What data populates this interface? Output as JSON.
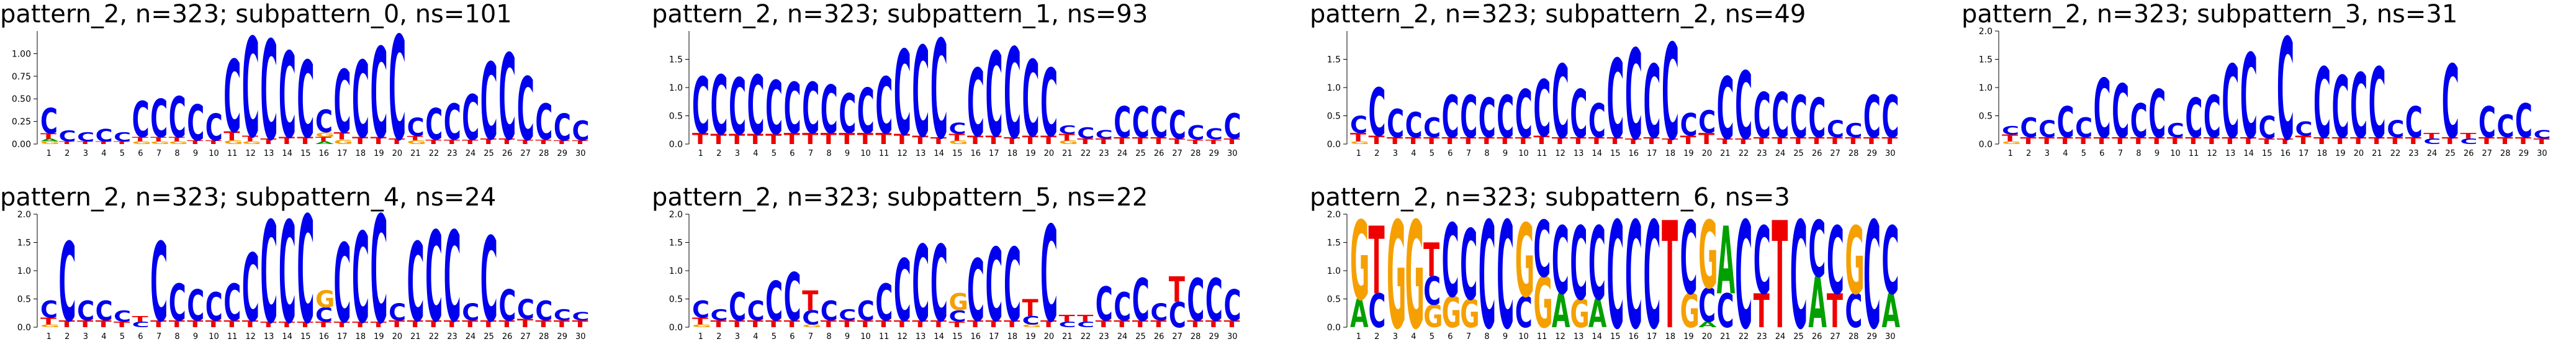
{
  "colors": {
    "C": "#0000ee",
    "G": "#f5a000",
    "T": "#ee0000",
    "A": "#00a000",
    "axis": "#000000"
  },
  "chart_data": [
    {
      "type": "sequence-logo",
      "title": "pattern_2, n=323; subpattern_0, ns=101",
      "ylim": [
        0,
        1.25
      ],
      "yticks": [
        "0.00",
        "0.25",
        "0.50",
        "0.75",
        "1.00"
      ],
      "xticks": [
        "1",
        "2",
        "3",
        "4",
        "5",
        "6",
        "7",
        "8",
        "9",
        "10",
        "11",
        "12",
        "13",
        "14",
        "15",
        "16",
        "17",
        "18",
        "19",
        "20",
        "21",
        "22",
        "23",
        "24",
        "25",
        "26",
        "27",
        "28",
        "29",
        "30"
      ],
      "columns": [
        {
          "C": 0.28,
          "T": 0.06,
          "G": 0.03,
          "A": 0.03
        },
        {
          "C": 0.12,
          "T": 0.03
        },
        {
          "C": 0.1,
          "T": 0.03
        },
        {
          "C": 0.14,
          "T": 0.03
        },
        {
          "C": 0.1,
          "T": 0.03
        },
        {
          "C": 0.4,
          "T": 0.05,
          "G": 0.03
        },
        {
          "C": 0.42,
          "T": 0.05,
          "G": 0.03
        },
        {
          "C": 0.45,
          "T": 0.05,
          "G": 0.03
        },
        {
          "C": 0.4,
          "T": 0.04
        },
        {
          "C": 0.3,
          "T": 0.04
        },
        {
          "C": 0.8,
          "T": 0.1,
          "G": 0.04
        },
        {
          "C": 1.1,
          "T": 0.06,
          "G": 0.03
        },
        {
          "C": 1.1,
          "T": 0.06
        },
        {
          "C": 0.95,
          "T": 0.08
        },
        {
          "C": 0.85,
          "T": 0.08
        },
        {
          "C": 0.25,
          "T": 0.05,
          "G": 0.05,
          "A": 0.03
        },
        {
          "C": 0.7,
          "T": 0.08,
          "G": 0.05
        },
        {
          "C": 0.85,
          "T": 0.08
        },
        {
          "C": 1.0,
          "T": 0.08
        },
        {
          "C": 1.15,
          "T": 0.06
        },
        {
          "C": 0.2,
          "T": 0.05,
          "G": 0.04
        },
        {
          "C": 0.35,
          "T": 0.05
        },
        {
          "C": 0.4,
          "T": 0.05
        },
        {
          "C": 0.5,
          "T": 0.05
        },
        {
          "C": 0.85,
          "T": 0.06
        },
        {
          "C": 0.95,
          "T": 0.06
        },
        {
          "C": 0.7,
          "T": 0.05
        },
        {
          "C": 0.4,
          "T": 0.05
        },
        {
          "C": 0.3,
          "T": 0.04
        },
        {
          "C": 0.22,
          "T": 0.04
        }
      ]
    },
    {
      "type": "sequence-logo",
      "title": "pattern_2, n=323; subpattern_1, ns=93",
      "ylim": [
        0,
        2.0
      ],
      "yticks": [
        "0.0",
        "0.5",
        "1.0",
        "1.5"
      ],
      "xticks": [
        "1",
        "2",
        "3",
        "4",
        "5",
        "6",
        "7",
        "8",
        "9",
        "10",
        "11",
        "12",
        "13",
        "14",
        "15",
        "16",
        "17",
        "18",
        "19",
        "20",
        "21",
        "22",
        "23",
        "24",
        "25",
        "26",
        "27",
        "28",
        "29",
        "30"
      ],
      "columns": [
        {
          "C": 1.0,
          "T": 0.2
        },
        {
          "C": 1.05,
          "T": 0.18
        },
        {
          "C": 1.0,
          "T": 0.18
        },
        {
          "C": 1.05,
          "T": 0.18
        },
        {
          "C": 0.95,
          "T": 0.18
        },
        {
          "C": 0.9,
          "T": 0.2
        },
        {
          "C": 0.9,
          "T": 0.2
        },
        {
          "C": 0.85,
          "T": 0.2
        },
        {
          "C": 0.7,
          "T": 0.2
        },
        {
          "C": 0.8,
          "T": 0.2
        },
        {
          "C": 1.0,
          "T": 0.2
        },
        {
          "C": 1.5,
          "T": 0.18
        },
        {
          "C": 1.6,
          "T": 0.15
        },
        {
          "C": 1.75,
          "T": 0.12
        },
        {
          "C": 0.2,
          "T": 0.12,
          "G": 0.06
        },
        {
          "C": 1.2,
          "T": 0.15
        },
        {
          "C": 1.5,
          "T": 0.15
        },
        {
          "C": 1.6,
          "T": 0.12
        },
        {
          "C": 1.35,
          "T": 0.15
        },
        {
          "C": 1.2,
          "T": 0.15
        },
        {
          "C": 0.15,
          "T": 0.12,
          "G": 0.06
        },
        {
          "C": 0.2,
          "T": 0.1
        },
        {
          "C": 0.15,
          "T": 0.1
        },
        {
          "C": 0.55,
          "T": 0.12
        },
        {
          "C": 0.55,
          "T": 0.12
        },
        {
          "C": 0.55,
          "T": 0.12
        },
        {
          "C": 0.5,
          "T": 0.1
        },
        {
          "C": 0.25,
          "T": 0.08
        },
        {
          "C": 0.2,
          "T": 0.08
        },
        {
          "C": 0.45,
          "T": 0.1
        }
      ]
    },
    {
      "type": "sequence-logo",
      "title": "pattern_2, n=323; subpattern_2, ns=49",
      "ylim": [
        0,
        2.0
      ],
      "yticks": [
        "0.0",
        "0.5",
        "1.0",
        "1.5"
      ],
      "xticks": [
        "1",
        "2",
        "3",
        "4",
        "5",
        "6",
        "7",
        "8",
        "9",
        "10",
        "11",
        "12",
        "13",
        "14",
        "15",
        "16",
        "17",
        "18",
        "19",
        "20",
        "21",
        "22",
        "23",
        "24",
        "25",
        "26",
        "27",
        "28",
        "29",
        "30"
      ],
      "columns": [
        {
          "C": 0.3,
          "T": 0.15,
          "G": 0.05
        },
        {
          "C": 0.85,
          "T": 0.15
        },
        {
          "C": 0.5,
          "T": 0.12
        },
        {
          "C": 0.45,
          "T": 0.12
        },
        {
          "C": 0.35,
          "T": 0.12
        },
        {
          "C": 0.75,
          "T": 0.12
        },
        {
          "C": 0.75,
          "T": 0.12
        },
        {
          "C": 0.7,
          "T": 0.12
        },
        {
          "C": 0.75,
          "T": 0.12
        },
        {
          "C": 0.85,
          "T": 0.12
        },
        {
          "C": 1.0,
          "T": 0.15
        },
        {
          "C": 1.3,
          "T": 0.12
        },
        {
          "C": 0.85,
          "T": 0.12
        },
        {
          "C": 0.6,
          "T": 0.12
        },
        {
          "C": 1.4,
          "T": 0.12
        },
        {
          "C": 1.6,
          "T": 0.1
        },
        {
          "C": 1.3,
          "T": 0.12
        },
        {
          "C": 1.7,
          "T": 0.1
        },
        {
          "C": 0.4,
          "T": 0.15
        },
        {
          "C": 0.4,
          "T": 0.2
        },
        {
          "C": 1.1,
          "T": 0.1
        },
        {
          "C": 1.2,
          "T": 0.1
        },
        {
          "C": 0.8,
          "T": 0.12
        },
        {
          "C": 0.8,
          "T": 0.12
        },
        {
          "C": 0.75,
          "T": 0.12
        },
        {
          "C": 0.7,
          "T": 0.12
        },
        {
          "C": 0.3,
          "T": 0.12
        },
        {
          "C": 0.25,
          "T": 0.12
        },
        {
          "C": 0.75,
          "T": 0.12
        },
        {
          "C": 0.75,
          "T": 0.12
        }
      ]
    },
    {
      "type": "sequence-logo",
      "title": "pattern_2, n=323; subpattern_3, ns=31",
      "ylim": [
        0,
        2.0
      ],
      "yticks": [
        "0.0",
        "0.5",
        "1.0",
        "1.5",
        "2.0"
      ],
      "xticks": [
        "1",
        "2",
        "3",
        "4",
        "5",
        "6",
        "7",
        "8",
        "9",
        "10",
        "11",
        "12",
        "13",
        "14",
        "15",
        "16",
        "17",
        "18",
        "19",
        "20",
        "21",
        "22",
        "23",
        "24",
        "25",
        "26",
        "27",
        "28",
        "29",
        "30"
      ],
      "columns": [
        {
          "C": 0.15,
          "T": 0.12,
          "G": 0.05
        },
        {
          "C": 0.35,
          "T": 0.12
        },
        {
          "C": 0.3,
          "T": 0.12
        },
        {
          "C": 0.55,
          "T": 0.12
        },
        {
          "C": 0.35,
          "T": 0.12
        },
        {
          "C": 1.05,
          "T": 0.12
        },
        {
          "C": 0.95,
          "T": 0.12
        },
        {
          "C": 0.6,
          "T": 0.12
        },
        {
          "C": 0.85,
          "T": 0.12
        },
        {
          "C": 0.25,
          "T": 0.12
        },
        {
          "C": 0.7,
          "T": 0.12
        },
        {
          "C": 0.75,
          "T": 0.12
        },
        {
          "C": 1.3,
          "T": 0.12
        },
        {
          "C": 1.5,
          "T": 0.12
        },
        {
          "C": 0.4,
          "T": 0.1
        },
        {
          "C": 1.8,
          "T": 0.1
        },
        {
          "C": 0.25,
          "T": 0.15
        },
        {
          "C": 1.25,
          "T": 0.12
        },
        {
          "C": 1.1,
          "T": 0.12
        },
        {
          "C": 1.15,
          "T": 0.12
        },
        {
          "C": 1.25,
          "T": 0.12
        },
        {
          "C": 0.3,
          "T": 0.12
        },
        {
          "C": 0.55,
          "T": 0.12
        },
        {
          "C": 0.1,
          "T": 0.1
        },
        {
          "C": 1.3,
          "T": 0.12
        },
        {
          "C": 0.1,
          "T": 0.1
        },
        {
          "C": 0.55,
          "T": 0.12
        },
        {
          "C": 0.4,
          "T": 0.12
        },
        {
          "C": 0.6,
          "T": 0.12
        },
        {
          "C": 0.15,
          "T": 0.1
        }
      ]
    },
    {
      "type": "sequence-logo",
      "title": "pattern_2, n=323; subpattern_4, ns=24",
      "ylim": [
        0,
        2.0
      ],
      "yticks": [
        "0.0",
        "0.5",
        "1.0",
        "1.5",
        "2.0"
      ],
      "xticks": [
        "1",
        "2",
        "3",
        "4",
        "5",
        "6",
        "7",
        "8",
        "9",
        "10",
        "11",
        "12",
        "13",
        "14",
        "15",
        "16",
        "17",
        "18",
        "19",
        "20",
        "21",
        "22",
        "23",
        "24",
        "25",
        "26",
        "27",
        "28",
        "29",
        "30"
      ],
      "columns": [
        {
          "C": 0.3,
          "T": 0.12,
          "G": 0.05
        },
        {
          "C": 1.4,
          "T": 0.12
        },
        {
          "C": 0.35,
          "T": 0.12
        },
        {
          "C": 0.35,
          "T": 0.12
        },
        {
          "C": 0.2,
          "T": 0.1
        },
        {
          "C": 0.1,
          "T": 0.1
        },
        {
          "C": 1.4,
          "T": 0.12
        },
        {
          "C": 0.65,
          "T": 0.12
        },
        {
          "C": 0.55,
          "T": 0.12
        },
        {
          "C": 0.5,
          "T": 0.12
        },
        {
          "C": 0.65,
          "T": 0.12
        },
        {
          "C": 1.2,
          "T": 0.12
        },
        {
          "C": 1.8,
          "T": 0.1
        },
        {
          "C": 1.8,
          "T": 0.1
        },
        {
          "C": 1.9,
          "T": 0.1
        },
        {
          "C": 0.25,
          "G": 0.3,
          "T": 0.1
        },
        {
          "C": 1.4,
          "T": 0.1
        },
        {
          "C": 1.6,
          "T": 0.1
        },
        {
          "C": 1.9,
          "T": 0.1
        },
        {
          "C": 0.3,
          "T": 0.12
        },
        {
          "C": 1.4,
          "T": 0.12
        },
        {
          "C": 1.6,
          "T": 0.12
        },
        {
          "C": 1.6,
          "T": 0.12
        },
        {
          "C": 0.3,
          "T": 0.12
        },
        {
          "C": 1.5,
          "T": 0.12
        },
        {
          "C": 0.55,
          "T": 0.12
        },
        {
          "C": 0.35,
          "T": 0.15
        },
        {
          "C": 0.35,
          "T": 0.12
        },
        {
          "C": 0.2,
          "T": 0.12
        },
        {
          "C": 0.15,
          "T": 0.12
        }
      ]
    },
    {
      "type": "sequence-logo",
      "title": "pattern_2, n=323; subpattern_5, ns=22",
      "ylim": [
        0,
        2.0
      ],
      "yticks": [
        "0.0",
        "0.5",
        "1.0",
        "1.5",
        "2.0"
      ],
      "xticks": [
        "1",
        "2",
        "3",
        "4",
        "5",
        "6",
        "7",
        "8",
        "9",
        "10",
        "11",
        "12",
        "13",
        "14",
        "15",
        "16",
        "17",
        "18",
        "19",
        "20",
        "21",
        "22",
        "23",
        "24",
        "25",
        "26",
        "27",
        "28",
        "29",
        "30"
      ],
      "columns": [
        {
          "C": 0.3,
          "T": 0.12,
          "G": 0.05
        },
        {
          "C": 0.2,
          "T": 0.12
        },
        {
          "C": 0.5,
          "T": 0.12
        },
        {
          "C": 0.35,
          "T": 0.12
        },
        {
          "C": 0.7,
          "T": 0.12
        },
        {
          "C": 0.85,
          "T": 0.12
        },
        {
          "C": 0.25,
          "T": 0.35,
          "G": 0.05
        },
        {
          "C": 0.35,
          "T": 0.12
        },
        {
          "C": 0.2,
          "T": 0.12
        },
        {
          "C": 0.35,
          "T": 0.12
        },
        {
          "C": 0.65,
          "T": 0.12
        },
        {
          "C": 1.1,
          "T": 0.12
        },
        {
          "C": 1.35,
          "T": 0.12
        },
        {
          "C": 1.35,
          "T": 0.12
        },
        {
          "C": 0.2,
          "G": 0.3,
          "T": 0.1
        },
        {
          "C": 1.1,
          "T": 0.12
        },
        {
          "C": 1.3,
          "T": 0.12
        },
        {
          "C": 1.3,
          "T": 0.12
        },
        {
          "C": 0.15,
          "T": 0.3,
          "G": 0.05
        },
        {
          "C": 1.7,
          "T": 0.12
        },
        {
          "C": 0.1,
          "T": 0.12
        },
        {
          "C": 0.1,
          "T": 0.12
        },
        {
          "C": 0.6,
          "T": 0.12
        },
        {
          "C": 0.5,
          "T": 0.12
        },
        {
          "C": 0.75,
          "T": 0.12
        },
        {
          "C": 0.3,
          "T": 0.12
        },
        {
          "C": 0.45,
          "T": 0.45
        },
        {
          "C": 0.75,
          "T": 0.12
        },
        {
          "C": 0.75,
          "T": 0.12
        },
        {
          "C": 0.55,
          "T": 0.12
        }
      ]
    },
    {
      "type": "sequence-logo",
      "title": "pattern_2, n=323; subpattern_6, ns=3",
      "ylim": [
        0,
        2.0
      ],
      "yticks": [
        "0.0",
        "0.5",
        "1.0",
        "1.5",
        "2.0"
      ],
      "xticks": [
        "1",
        "2",
        "3",
        "4",
        "5",
        "6",
        "7",
        "8",
        "9",
        "10",
        "11",
        "12",
        "13",
        "14",
        "15",
        "16",
        "17",
        "18",
        "19",
        "20",
        "21",
        "22",
        "23",
        "24",
        "25",
        "26",
        "27",
        "28",
        "29",
        "30"
      ],
      "columns": [
        {
          "G": 1.4,
          "A": 0.5
        },
        {
          "T": 1.2,
          "C": 0.6
        },
        {
          "G": 1.9
        },
        {
          "G": 1.9
        },
        {
          "T": 0.6,
          "G": 0.4,
          "C": 0.5
        },
        {
          "C": 1.3,
          "G": 0.55
        },
        {
          "C": 1.25,
          "G": 0.5
        },
        {
          "C": 1.9
        },
        {
          "C": 1.9
        },
        {
          "C": 0.55,
          "G": 1.3
        },
        {
          "C": 1.0,
          "G": 0.9
        },
        {
          "C": 1.2,
          "A": 0.6
        },
        {
          "C": 1.3,
          "G": 0.5
        },
        {
          "C": 1.3,
          "A": 0.5
        },
        {
          "C": 1.9
        },
        {
          "C": 1.9
        },
        {
          "C": 1.9
        },
        {
          "T": 1.9
        },
        {
          "C": 1.3,
          "G": 0.6
        },
        {
          "C": 0.6,
          "G": 1.2,
          "A": 0.1
        },
        {
          "C": 0.6,
          "A": 1.2
        },
        {
          "C": 1.9
        },
        {
          "T": 0.6,
          "C": 1.2
        },
        {
          "T": 1.9
        },
        {
          "C": 1.9
        },
        {
          "C": 1.0,
          "A": 0.9
        },
        {
          "C": 1.2,
          "T": 0.6
        },
        {
          "G": 1.2,
          "C": 0.6
        },
        {
          "C": 1.9
        },
        {
          "C": 1.2,
          "A": 0.6
        }
      ]
    }
  ]
}
